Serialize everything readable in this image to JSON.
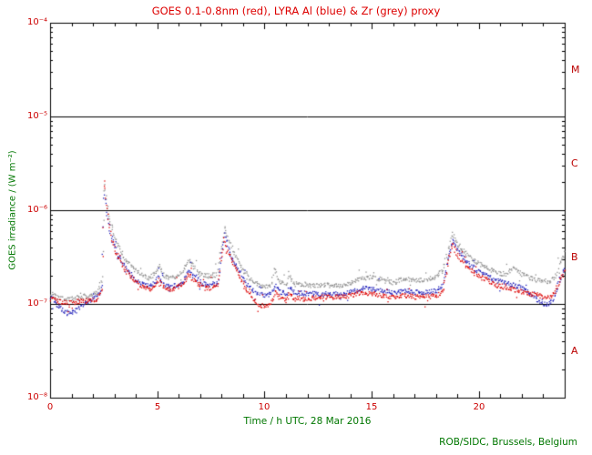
{
  "page": {
    "credit": "ROB/SIDC, Brussels, Belgium"
  },
  "colors": {
    "title_text": "#dd0000",
    "tick_text": "#cc0000",
    "class_letter_text": "#bb0000",
    "axis_title_text": "#007700",
    "frame": "#000000",
    "background": "#ffffff"
  },
  "chart_data": {
    "type": "scatter",
    "title": "GOES 0.1-0.8nm (red), LYRA Al (blue) & Zr (grey) proxy",
    "xlabel": "Time / h UTC, 28 Mar 2016",
    "ylabel": "GOES irradiance / (W m⁻²)",
    "xlim": [
      0,
      24
    ],
    "ylim": [
      1e-08,
      0.0001
    ],
    "ylog": true,
    "grid": false,
    "xticks": [
      0,
      5,
      10,
      15,
      20
    ],
    "xtick_labels": [
      "0",
      "5",
      "10",
      "15",
      "20"
    ],
    "xtick_minor_step": 1,
    "ytick_values": [
      0.0001,
      1e-05,
      1e-06,
      1e-07,
      1e-08
    ],
    "ytick_labels": [
      "10⁻⁴",
      "10⁻⁵",
      "10⁻⁶",
      "10⁻⁷",
      "10⁻⁸"
    ],
    "class_lines": [
      1e-05,
      1e-06,
      1e-07
    ],
    "class_labels": [
      {
        "label": "M",
        "value": 3.16e-05
      },
      {
        "label": "C",
        "value": 3.16e-06
      },
      {
        "label": "B",
        "value": 3.16e-07
      },
      {
        "label": "A",
        "value": 3.16e-08
      }
    ],
    "series": [
      {
        "name": "GOES 0.1-0.8nm",
        "color": "#dd0000",
        "points": [
          [
            0,
            1.15e-07
          ],
          [
            0.3,
            1.1e-07
          ],
          [
            0.6,
            1.05e-07
          ],
          [
            1,
            1.05e-07
          ],
          [
            1.4,
            1.08e-07
          ],
          [
            1.8,
            1.1e-07
          ],
          [
            2.2,
            1.15e-07
          ],
          [
            2.4,
            1.5e-07
          ],
          [
            2.5,
            2.3e-06
          ],
          [
            2.62,
            1.1e-06
          ],
          [
            2.8,
            5.5e-07
          ],
          [
            3,
            3.8e-07
          ],
          [
            3.2,
            3e-07
          ],
          [
            3.5,
            2.3e-07
          ],
          [
            3.8,
            1.9e-07
          ],
          [
            4.2,
            1.6e-07
          ],
          [
            4.6,
            1.45e-07
          ],
          [
            4.9,
            1.6e-07
          ],
          [
            5.05,
            1.9e-07
          ],
          [
            5.2,
            1.6e-07
          ],
          [
            5.5,
            1.45e-07
          ],
          [
            5.9,
            1.5e-07
          ],
          [
            6.2,
            1.7e-07
          ],
          [
            6.45,
            2.1e-07
          ],
          [
            6.7,
            1.8e-07
          ],
          [
            7,
            1.6e-07
          ],
          [
            7.4,
            1.5e-07
          ],
          [
            7.8,
            1.6e-07
          ],
          [
            7.95,
            2.8e-07
          ],
          [
            8.1,
            5e-07
          ],
          [
            8.25,
            3.8e-07
          ],
          [
            8.5,
            2.8e-07
          ],
          [
            8.8,
            2e-07
          ],
          [
            9.1,
            1.5e-07
          ],
          [
            9.4,
            1.2e-07
          ],
          [
            9.7,
            1e-07
          ],
          [
            10,
            9.5e-08
          ],
          [
            10.3,
            1.05e-07
          ],
          [
            10.5,
            1.4e-07
          ],
          [
            10.7,
            1.15e-07
          ],
          [
            11,
            1.1e-07
          ],
          [
            11.15,
            1.3e-07
          ],
          [
            11.4,
            1.15e-07
          ],
          [
            12,
            1.15e-07
          ],
          [
            12.5,
            1.2e-07
          ],
          [
            13,
            1.2e-07
          ],
          [
            13.5,
            1.2e-07
          ],
          [
            14,
            1.25e-07
          ],
          [
            14.5,
            1.35e-07
          ],
          [
            15,
            1.3e-07
          ],
          [
            15.5,
            1.25e-07
          ],
          [
            16,
            1.2e-07
          ],
          [
            16.5,
            1.25e-07
          ],
          [
            17,
            1.2e-07
          ],
          [
            17.5,
            1.2e-07
          ],
          [
            18,
            1.25e-07
          ],
          [
            18.3,
            1.4e-07
          ],
          [
            18.6,
            3.2e-07
          ],
          [
            18.75,
            4.3e-07
          ],
          [
            19,
            3.3e-07
          ],
          [
            19.3,
            2.7e-07
          ],
          [
            19.7,
            2.2e-07
          ],
          [
            20,
            2e-07
          ],
          [
            20.4,
            1.8e-07
          ],
          [
            20.8,
            1.6e-07
          ],
          [
            21.2,
            1.5e-07
          ],
          [
            21.6,
            1.45e-07
          ],
          [
            22,
            1.35e-07
          ],
          [
            22.4,
            1.3e-07
          ],
          [
            22.8,
            1.25e-07
          ],
          [
            23.2,
            1.2e-07
          ],
          [
            23.5,
            1.3e-07
          ],
          [
            23.8,
            1.9e-07
          ],
          [
            24,
            2.4e-07
          ]
        ]
      },
      {
        "name": "LYRA Al proxy",
        "color": "#2222bb",
        "points": [
          [
            0,
            1.2e-07
          ],
          [
            0.3,
            1e-07
          ],
          [
            0.6,
            8.5e-08
          ],
          [
            0.9,
            8e-08
          ],
          [
            1.2,
            8.5e-08
          ],
          [
            1.5,
            1e-07
          ],
          [
            1.8,
            1.1e-07
          ],
          [
            2.2,
            1.2e-07
          ],
          [
            2.4,
            1.6e-07
          ],
          [
            2.5,
            1.7e-06
          ],
          [
            2.62,
            9.5e-07
          ],
          [
            2.8,
            5.5e-07
          ],
          [
            3,
            4e-07
          ],
          [
            3.2,
            3.2e-07
          ],
          [
            3.5,
            2.5e-07
          ],
          [
            3.8,
            2e-07
          ],
          [
            4.2,
            1.7e-07
          ],
          [
            4.6,
            1.55e-07
          ],
          [
            4.9,
            1.7e-07
          ],
          [
            5.05,
            2e-07
          ],
          [
            5.2,
            1.7e-07
          ],
          [
            5.5,
            1.55e-07
          ],
          [
            5.9,
            1.6e-07
          ],
          [
            6.2,
            1.8e-07
          ],
          [
            6.45,
            2.3e-07
          ],
          [
            6.7,
            1.95e-07
          ],
          [
            7,
            1.7e-07
          ],
          [
            7.4,
            1.6e-07
          ],
          [
            7.8,
            1.7e-07
          ],
          [
            7.95,
            3e-07
          ],
          [
            8.1,
            5.5e-07
          ],
          [
            8.25,
            4.2e-07
          ],
          [
            8.5,
            3e-07
          ],
          [
            8.8,
            2.2e-07
          ],
          [
            9.1,
            1.7e-07
          ],
          [
            9.4,
            1.45e-07
          ],
          [
            9.7,
            1.3e-07
          ],
          [
            10,
            1.25e-07
          ],
          [
            10.3,
            1.3e-07
          ],
          [
            10.5,
            1.6e-07
          ],
          [
            10.7,
            1.35e-07
          ],
          [
            11,
            1.3e-07
          ],
          [
            11.15,
            1.5e-07
          ],
          [
            11.4,
            1.35e-07
          ],
          [
            12,
            1.3e-07
          ],
          [
            12.5,
            1.3e-07
          ],
          [
            13,
            1.3e-07
          ],
          [
            13.5,
            1.3e-07
          ],
          [
            14,
            1.35e-07
          ],
          [
            14.5,
            1.5e-07
          ],
          [
            15,
            1.45e-07
          ],
          [
            15.5,
            1.4e-07
          ],
          [
            16,
            1.35e-07
          ],
          [
            16.5,
            1.4e-07
          ],
          [
            17,
            1.35e-07
          ],
          [
            17.5,
            1.35e-07
          ],
          [
            18,
            1.4e-07
          ],
          [
            18.3,
            1.6e-07
          ],
          [
            18.6,
            3.6e-07
          ],
          [
            18.75,
            4.8e-07
          ],
          [
            19,
            3.7e-07
          ],
          [
            19.3,
            3e-07
          ],
          [
            19.7,
            2.5e-07
          ],
          [
            20,
            2.2e-07
          ],
          [
            20.4,
            2e-07
          ],
          [
            20.8,
            1.8e-07
          ],
          [
            21.2,
            1.7e-07
          ],
          [
            21.6,
            1.6e-07
          ],
          [
            22,
            1.5e-07
          ],
          [
            22.4,
            1.3e-07
          ],
          [
            22.8,
            1.05e-07
          ],
          [
            23.2,
            1e-07
          ],
          [
            23.5,
            1.2e-07
          ],
          [
            23.8,
            2e-07
          ],
          [
            24,
            2.6e-07
          ]
        ]
      },
      {
        "name": "LYRA Zr proxy",
        "color": "#909090",
        "points": [
          [
            0,
            1.3e-07
          ],
          [
            0.3,
            1.2e-07
          ],
          [
            0.6,
            1.15e-07
          ],
          [
            1,
            1.15e-07
          ],
          [
            1.4,
            1.2e-07
          ],
          [
            1.8,
            1.25e-07
          ],
          [
            2.2,
            1.35e-07
          ],
          [
            2.4,
            1.9e-07
          ],
          [
            2.5,
            2e-06
          ],
          [
            2.62,
            1.25e-06
          ],
          [
            2.8,
            7e-07
          ],
          [
            3,
            5e-07
          ],
          [
            3.2,
            4e-07
          ],
          [
            3.5,
            3e-07
          ],
          [
            3.8,
            2.5e-07
          ],
          [
            4.2,
            2.1e-07
          ],
          [
            4.6,
            1.9e-07
          ],
          [
            4.9,
            2.2e-07
          ],
          [
            5.05,
            2.6e-07
          ],
          [
            5.2,
            2.1e-07
          ],
          [
            5.5,
            1.9e-07
          ],
          [
            5.9,
            2e-07
          ],
          [
            6.2,
            2.3e-07
          ],
          [
            6.45,
            3e-07
          ],
          [
            6.7,
            2.5e-07
          ],
          [
            7,
            2.1e-07
          ],
          [
            7.4,
            2e-07
          ],
          [
            7.8,
            2.1e-07
          ],
          [
            7.95,
            3.8e-07
          ],
          [
            8.1,
            6.8e-07
          ],
          [
            8.25,
            5.2e-07
          ],
          [
            8.5,
            3.8e-07
          ],
          [
            8.8,
            2.8e-07
          ],
          [
            9.1,
            2.1e-07
          ],
          [
            9.4,
            1.8e-07
          ],
          [
            9.7,
            1.6e-07
          ],
          [
            10,
            1.55e-07
          ],
          [
            10.3,
            1.6e-07
          ],
          [
            10.45,
            2.6e-07
          ],
          [
            10.6,
            1.8e-07
          ],
          [
            11,
            1.6e-07
          ],
          [
            11.15,
            2e-07
          ],
          [
            11.4,
            1.65e-07
          ],
          [
            12,
            1.6e-07
          ],
          [
            12.5,
            1.6e-07
          ],
          [
            13,
            1.6e-07
          ],
          [
            13.5,
            1.6e-07
          ],
          [
            14,
            1.7e-07
          ],
          [
            14.5,
            1.9e-07
          ],
          [
            15,
            2e-07
          ],
          [
            15.5,
            1.8e-07
          ],
          [
            16,
            1.7e-07
          ],
          [
            16.5,
            1.9e-07
          ],
          [
            17,
            1.8e-07
          ],
          [
            17.5,
            1.85e-07
          ],
          [
            18,
            2e-07
          ],
          [
            18.3,
            2.3e-07
          ],
          [
            18.6,
            4.4e-07
          ],
          [
            18.75,
            5.6e-07
          ],
          [
            19,
            4.4e-07
          ],
          [
            19.3,
            3.6e-07
          ],
          [
            19.7,
            3e-07
          ],
          [
            20,
            2.7e-07
          ],
          [
            20.4,
            2.4e-07
          ],
          [
            20.8,
            2.2e-07
          ],
          [
            21.2,
            2.1e-07
          ],
          [
            21.6,
            2.4e-07
          ],
          [
            22,
            2.1e-07
          ],
          [
            22.4,
            1.9e-07
          ],
          [
            22.8,
            1.8e-07
          ],
          [
            23.2,
            1.75e-07
          ],
          [
            23.5,
            1.9e-07
          ],
          [
            23.8,
            2.9e-07
          ],
          [
            24,
            3.6e-07
          ]
        ]
      }
    ]
  }
}
